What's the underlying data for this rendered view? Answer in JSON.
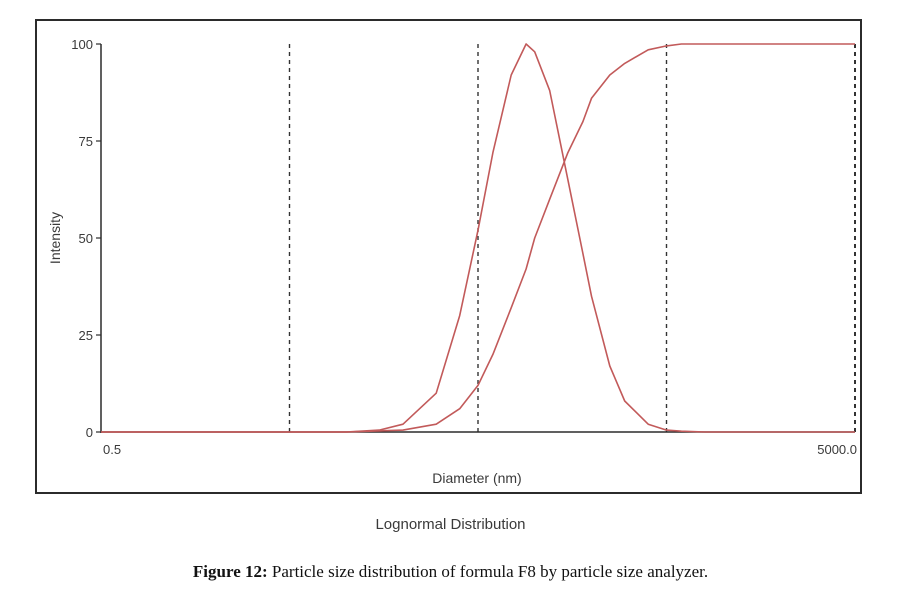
{
  "chart_data": {
    "type": "line",
    "ylabel": "Intensity",
    "xlabel": "Diameter (nm)",
    "xscale": "log",
    "xlim": [
      0.5,
      5000.0
    ],
    "ylim": [
      0,
      100
    ],
    "x_tick_labels": [
      "0.5",
      "5000.0"
    ],
    "y_ticks": [
      0,
      25,
      50,
      75,
      100
    ],
    "y_tick_labels": [
      "0",
      "25",
      "50",
      "75",
      "100"
    ],
    "vertical_dashed_lines_x": [
      5.0,
      50.0,
      500.0,
      5000.0
    ],
    "distribution_label": "Lognormal Distribution",
    "series": [
      {
        "kind": "density",
        "x": [
          10,
          15,
          20,
          30,
          40,
          50,
          60,
          75,
          90,
          100,
          120,
          150,
          180,
          200,
          250,
          300,
          400,
          500,
          600,
          800
        ],
        "values": [
          0,
          0.5,
          2,
          10,
          30,
          52,
          72,
          92,
          100,
          98,
          88,
          65,
          46,
          35,
          17,
          8,
          2,
          0.5,
          0.2,
          0
        ]
      },
      {
        "kind": "cumulative",
        "x": [
          10,
          20,
          30,
          40,
          50,
          60,
          75,
          90,
          100,
          120,
          150,
          180,
          200,
          250,
          300,
          400,
          500,
          600,
          800,
          1000,
          5000
        ],
        "values": [
          0,
          0.5,
          2,
          6,
          12,
          20,
          32,
          42,
          50,
          60,
          72,
          80,
          86,
          92,
          95,
          98.5,
          99.5,
          100,
          100,
          100,
          100
        ]
      }
    ],
    "colors": {
      "curve": "#c25a5a",
      "dashed": "#333333",
      "axis": "#2b2b2b"
    }
  },
  "caption": {
    "label": "Figure 12:",
    "text": " Particle size distribution of formula F8 by particle size analyzer."
  }
}
